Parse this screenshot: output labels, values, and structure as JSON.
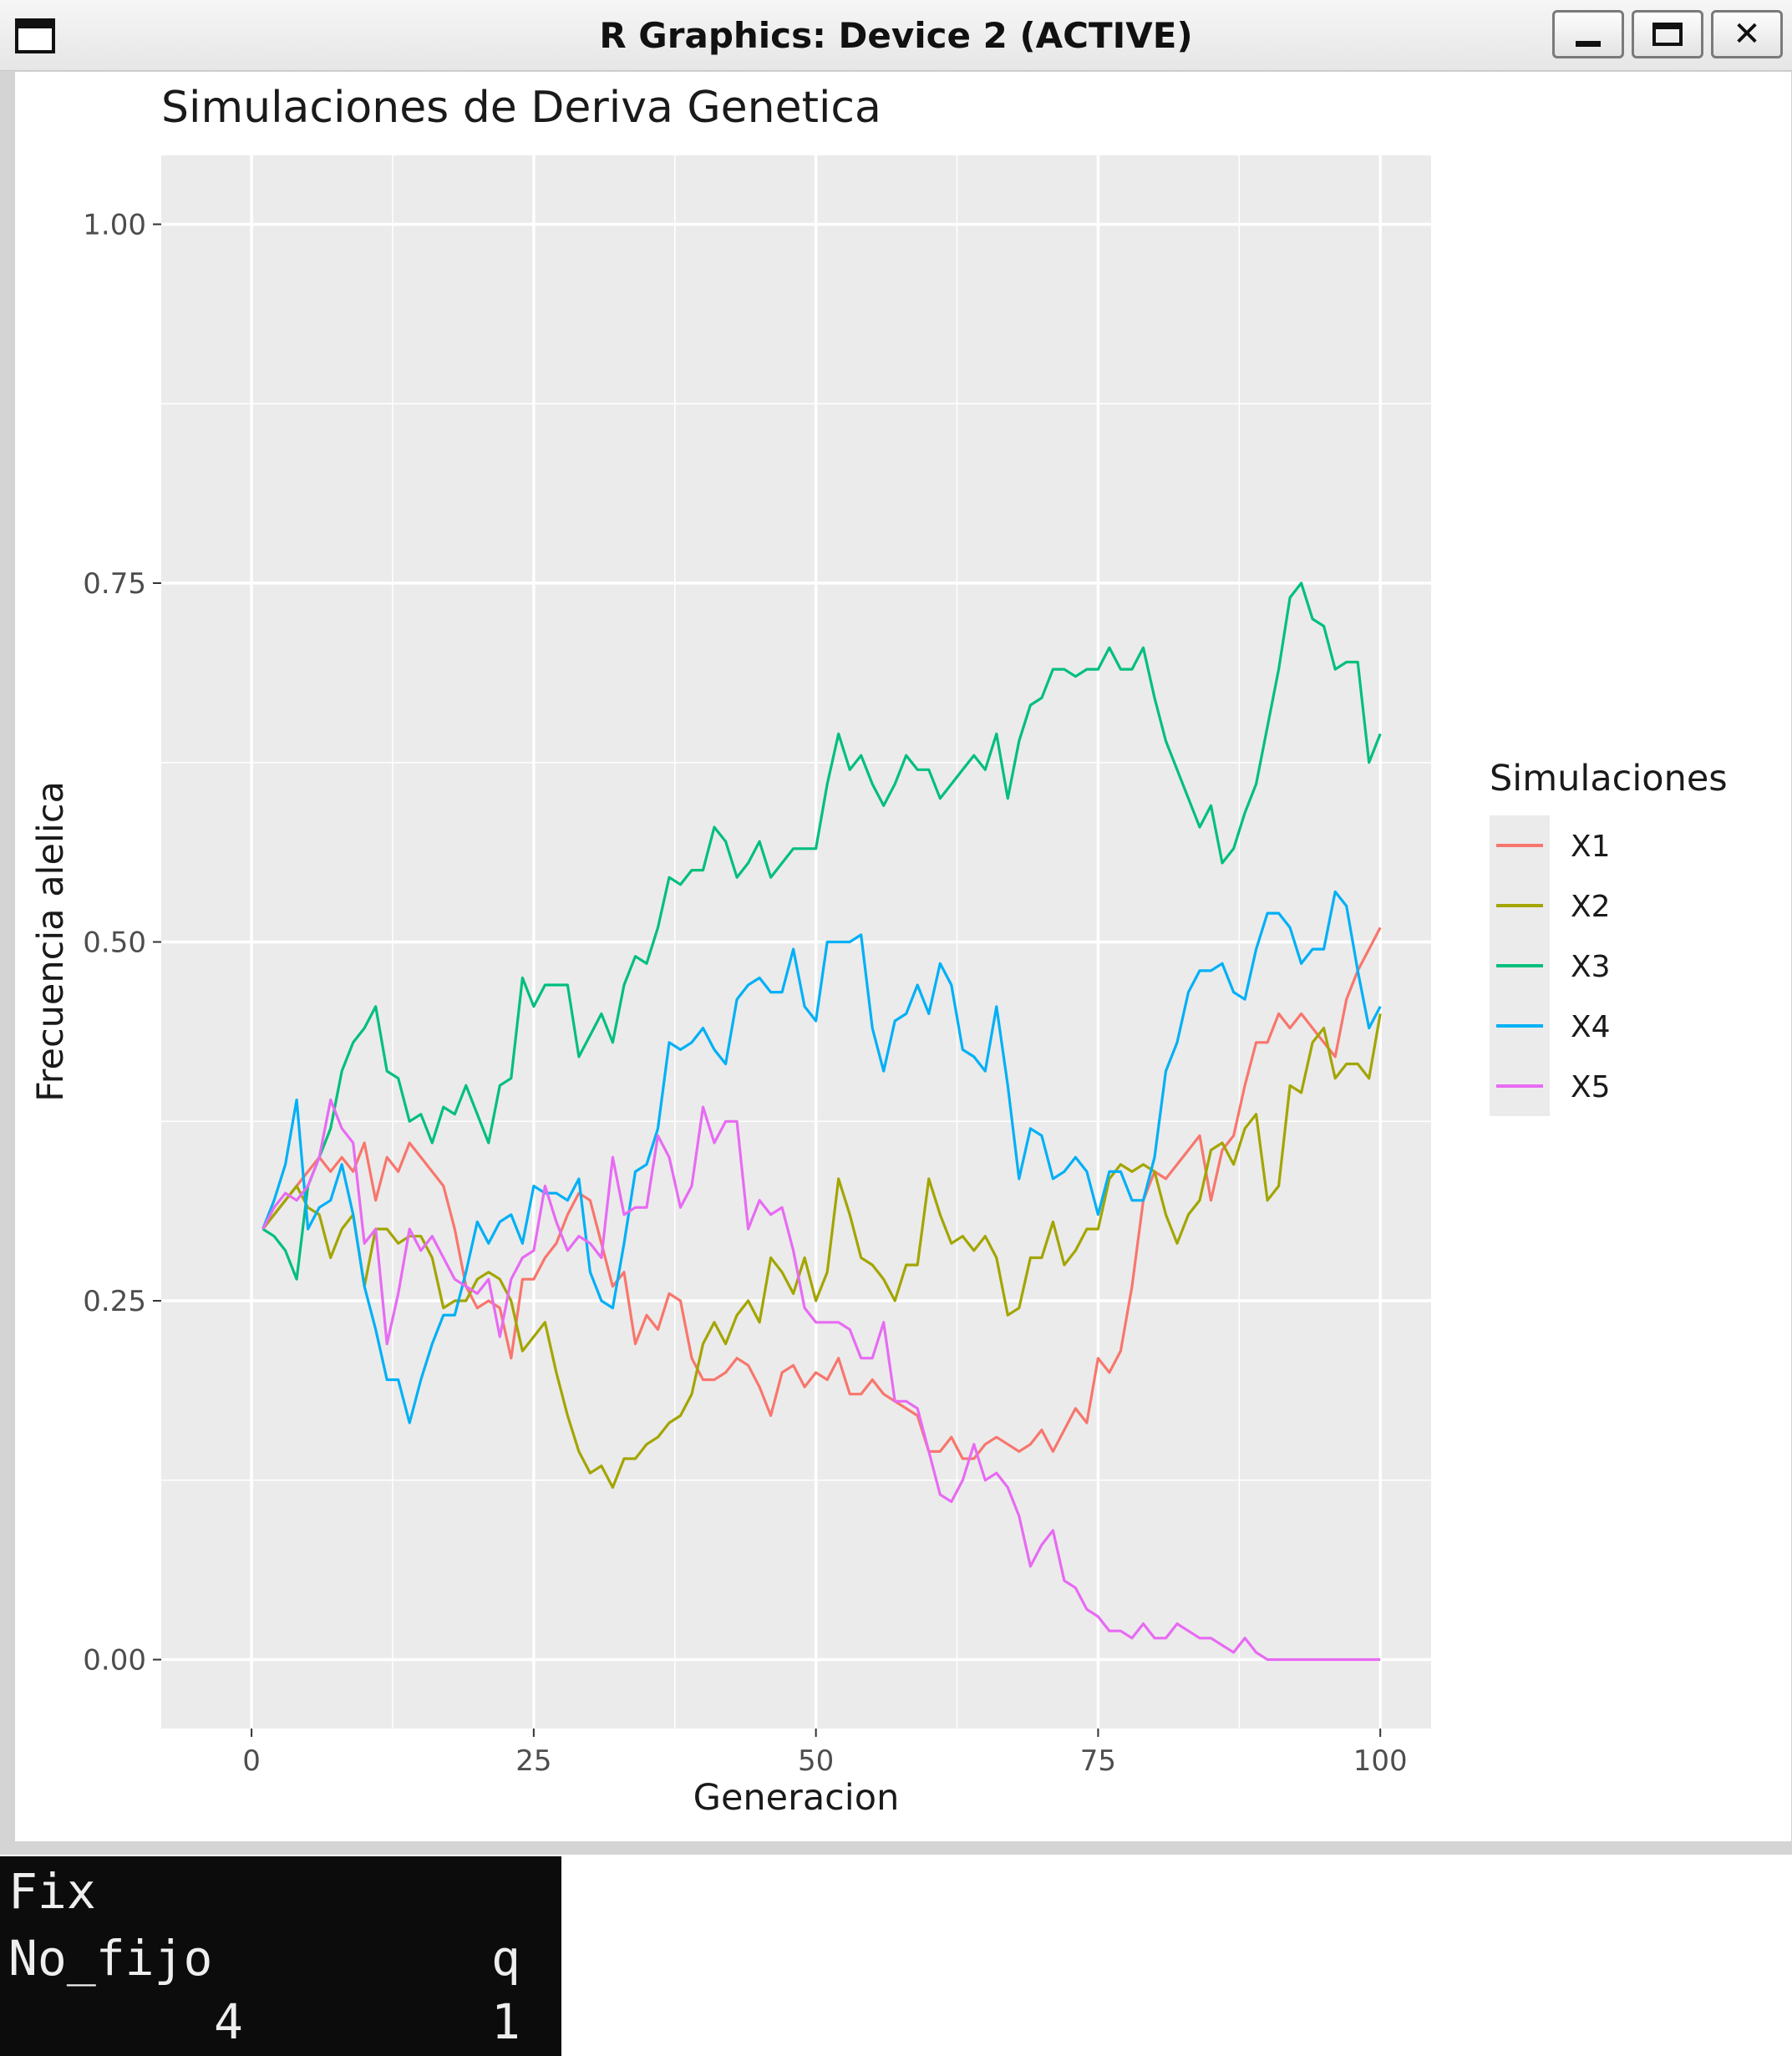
{
  "window": {
    "title": "R Graphics: Device 2 (ACTIVE)",
    "icons": {
      "app": "window-icon",
      "minimize": "minimize-icon",
      "maximize": "maximize-icon",
      "close": "close-icon"
    },
    "close_glyph": "✕"
  },
  "chart_data": {
    "type": "line",
    "title": "Simulaciones de Deriva Genetica",
    "xlabel": "Generacion",
    "ylabel": "Frecuencia alelica",
    "xlim": [
      -8,
      104.5
    ],
    "ylim": [
      -0.048,
      1.048
    ],
    "xticks": [
      0,
      25,
      50,
      75,
      100
    ],
    "xtick_labels": [
      "0",
      "25",
      "50",
      "75",
      "100"
    ],
    "yticks": [
      0,
      0.25,
      0.5,
      0.75,
      1
    ],
    "ytick_labels": [
      "0.00",
      "0.25",
      "0.50",
      "0.75",
      "1.00"
    ],
    "grid": true,
    "panel_background": "#ebebeb",
    "legend_title": "Simulaciones",
    "legend_position": "right",
    "x": [
      1,
      2,
      3,
      4,
      5,
      6,
      7,
      8,
      9,
      10,
      11,
      12,
      13,
      14,
      15,
      16,
      17,
      18,
      19,
      20,
      21,
      22,
      23,
      24,
      25,
      26,
      27,
      28,
      29,
      30,
      31,
      32,
      33,
      34,
      35,
      36,
      37,
      38,
      39,
      40,
      41,
      42,
      43,
      44,
      45,
      46,
      47,
      48,
      49,
      50,
      51,
      52,
      53,
      54,
      55,
      56,
      57,
      58,
      59,
      60,
      61,
      62,
      63,
      64,
      65,
      66,
      67,
      68,
      69,
      70,
      71,
      72,
      73,
      74,
      75,
      76,
      77,
      78,
      79,
      80,
      81,
      82,
      83,
      84,
      85,
      86,
      87,
      88,
      89,
      90,
      91,
      92,
      93,
      94,
      95,
      96,
      97,
      98,
      99,
      100
    ],
    "series": [
      {
        "name": "X1",
        "color": "#F8766D",
        "values": [
          0.3,
          0.31,
          0.32,
          0.33,
          0.34,
          0.35,
          0.34,
          0.35,
          0.34,
          0.36,
          0.32,
          0.35,
          0.34,
          0.36,
          0.35,
          0.34,
          0.33,
          0.3,
          0.26,
          0.245,
          0.25,
          0.245,
          0.21,
          0.265,
          0.265,
          0.28,
          0.29,
          0.31,
          0.325,
          0.32,
          0.29,
          0.26,
          0.27,
          0.22,
          0.24,
          0.23,
          0.255,
          0.25,
          0.21,
          0.195,
          0.195,
          0.2,
          0.21,
          0.205,
          0.19,
          0.17,
          0.2,
          0.205,
          0.19,
          0.2,
          0.195,
          0.21,
          0.185,
          0.185,
          0.195,
          0.185,
          0.18,
          0.175,
          0.17,
          0.145,
          0.145,
          0.155,
          0.14,
          0.14,
          0.15,
          0.155,
          0.15,
          0.145,
          0.15,
          0.16,
          0.145,
          0.16,
          0.175,
          0.165,
          0.21,
          0.2,
          0.215,
          0.26,
          0.32,
          0.34,
          0.335,
          0.345,
          0.355,
          0.365,
          0.32,
          0.355,
          0.365,
          0.4,
          0.43,
          0.43,
          0.45,
          0.44,
          0.45,
          0.44,
          0.43,
          0.42,
          0.46,
          0.48,
          0.495,
          0.51
        ]
      },
      {
        "name": "X2",
        "color": "#A3A500",
        "values": [
          0.3,
          0.31,
          0.32,
          0.33,
          0.315,
          0.31,
          0.28,
          0.3,
          0.31,
          0.26,
          0.3,
          0.3,
          0.29,
          0.295,
          0.295,
          0.28,
          0.245,
          0.25,
          0.25,
          0.265,
          0.27,
          0.265,
          0.25,
          0.215,
          0.225,
          0.235,
          0.2,
          0.17,
          0.145,
          0.13,
          0.135,
          0.12,
          0.14,
          0.14,
          0.15,
          0.155,
          0.165,
          0.17,
          0.185,
          0.22,
          0.235,
          0.22,
          0.24,
          0.25,
          0.235,
          0.28,
          0.27,
          0.255,
          0.28,
          0.25,
          0.27,
          0.335,
          0.31,
          0.28,
          0.275,
          0.265,
          0.25,
          0.275,
          0.275,
          0.335,
          0.31,
          0.29,
          0.295,
          0.285,
          0.295,
          0.28,
          0.24,
          0.245,
          0.28,
          0.28,
          0.305,
          0.275,
          0.285,
          0.3,
          0.3,
          0.335,
          0.345,
          0.34,
          0.345,
          0.34,
          0.31,
          0.29,
          0.31,
          0.32,
          0.355,
          0.36,
          0.345,
          0.37,
          0.38,
          0.32,
          0.33,
          0.4,
          0.395,
          0.43,
          0.44,
          0.405,
          0.415,
          0.415,
          0.405,
          0.45
        ]
      },
      {
        "name": "X3",
        "color": "#00BF7D",
        "values": [
          0.3,
          0.295,
          0.285,
          0.265,
          0.33,
          0.35,
          0.37,
          0.41,
          0.43,
          0.44,
          0.455,
          0.41,
          0.405,
          0.375,
          0.38,
          0.36,
          0.385,
          0.38,
          0.4,
          0.38,
          0.36,
          0.4,
          0.405,
          0.475,
          0.455,
          0.47,
          0.47,
          0.47,
          0.42,
          0.435,
          0.45,
          0.43,
          0.47,
          0.49,
          0.485,
          0.51,
          0.545,
          0.54,
          0.55,
          0.55,
          0.58,
          0.57,
          0.545,
          0.555,
          0.57,
          0.545,
          0.555,
          0.565,
          0.565,
          0.565,
          0.61,
          0.645,
          0.62,
          0.63,
          0.61,
          0.595,
          0.61,
          0.63,
          0.62,
          0.62,
          0.6,
          0.61,
          0.62,
          0.63,
          0.62,
          0.645,
          0.6,
          0.64,
          0.665,
          0.67,
          0.69,
          0.69,
          0.685,
          0.69,
          0.69,
          0.705,
          0.69,
          0.69,
          0.705,
          0.67,
          0.64,
          0.62,
          0.6,
          0.58,
          0.595,
          0.555,
          0.565,
          0.59,
          0.61,
          0.65,
          0.69,
          0.74,
          0.75,
          0.725,
          0.72,
          0.69,
          0.695,
          0.695,
          0.625,
          0.645
        ]
      },
      {
        "name": "X4",
        "color": "#00B0F6",
        "values": [
          0.3,
          0.32,
          0.345,
          0.39,
          0.3,
          0.315,
          0.32,
          0.345,
          0.31,
          0.26,
          0.23,
          0.195,
          0.195,
          0.165,
          0.195,
          0.22,
          0.24,
          0.24,
          0.27,
          0.305,
          0.29,
          0.305,
          0.31,
          0.29,
          0.33,
          0.325,
          0.325,
          0.32,
          0.335,
          0.27,
          0.25,
          0.245,
          0.29,
          0.34,
          0.345,
          0.37,
          0.43,
          0.425,
          0.43,
          0.44,
          0.425,
          0.415,
          0.46,
          0.47,
          0.475,
          0.465,
          0.465,
          0.495,
          0.455,
          0.445,
          0.5,
          0.5,
          0.5,
          0.505,
          0.44,
          0.41,
          0.445,
          0.45,
          0.47,
          0.45,
          0.485,
          0.47,
          0.425,
          0.42,
          0.41,
          0.455,
          0.4,
          0.335,
          0.37,
          0.365,
          0.335,
          0.34,
          0.35,
          0.34,
          0.31,
          0.34,
          0.34,
          0.32,
          0.32,
          0.35,
          0.41,
          0.43,
          0.465,
          0.48,
          0.48,
          0.485,
          0.465,
          0.46,
          0.495,
          0.52,
          0.52,
          0.51,
          0.485,
          0.495,
          0.495,
          0.535,
          0.525,
          0.48,
          0.44,
          0.455
        ]
      },
      {
        "name": "X5",
        "color": "#E76BF3",
        "values": [
          0.3,
          0.315,
          0.325,
          0.32,
          0.33,
          0.35,
          0.39,
          0.37,
          0.36,
          0.29,
          0.3,
          0.22,
          0.255,
          0.3,
          0.285,
          0.295,
          0.28,
          0.265,
          0.26,
          0.255,
          0.265,
          0.225,
          0.265,
          0.28,
          0.285,
          0.33,
          0.305,
          0.285,
          0.295,
          0.29,
          0.28,
          0.35,
          0.31,
          0.315,
          0.315,
          0.365,
          0.35,
          0.315,
          0.33,
          0.385,
          0.36,
          0.375,
          0.375,
          0.3,
          0.32,
          0.31,
          0.315,
          0.285,
          0.245,
          0.235,
          0.235,
          0.235,
          0.23,
          0.21,
          0.21,
          0.235,
          0.18,
          0.18,
          0.175,
          0.145,
          0.115,
          0.11,
          0.125,
          0.15,
          0.125,
          0.13,
          0.12,
          0.1,
          0.065,
          0.08,
          0.09,
          0.055,
          0.05,
          0.035,
          0.03,
          0.02,
          0.02,
          0.015,
          0.025,
          0.015,
          0.015,
          0.025,
          0.02,
          0.015,
          0.015,
          0.01,
          0.005,
          0.015,
          0.005,
          0.0,
          0.0,
          0.0,
          0.0,
          0.0,
          0.0,
          0.0,
          0.0,
          0.0,
          0.0,
          0.0
        ]
      }
    ]
  },
  "console": {
    "line1": "Fix",
    "header_col1": "No_fijo",
    "header_col2": "q",
    "value_col1": "4",
    "value_col2": "1"
  }
}
